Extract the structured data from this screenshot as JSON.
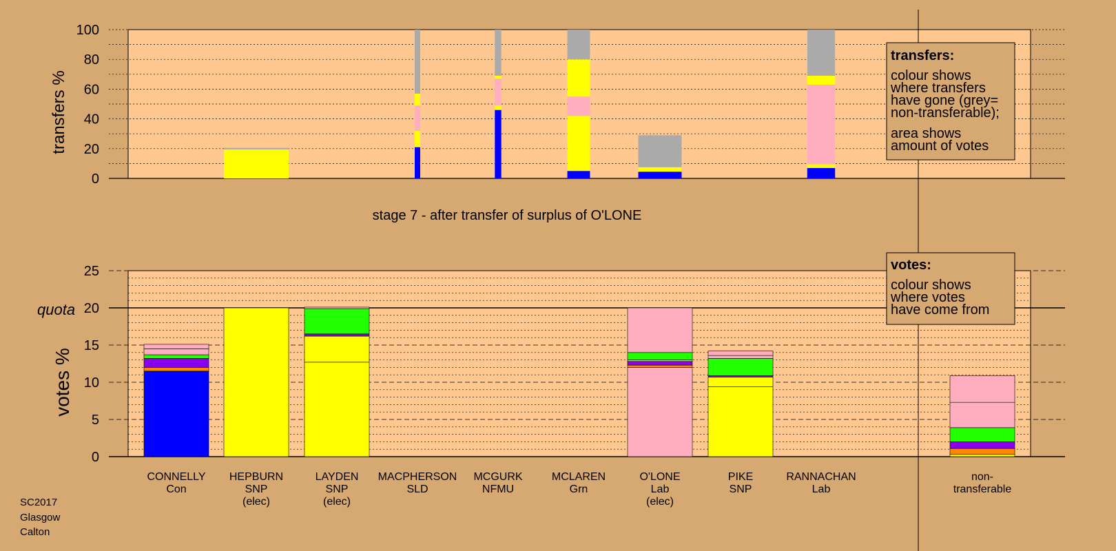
{
  "footer": {
    "lines": [
      "SC2017",
      "Glasgow",
      "Calton"
    ]
  },
  "stage_title": "stage 7 - after transfer of surplus of O'LONE",
  "colors": {
    "page_bg": "#d6a872",
    "plot_bg": "#ffc890",
    "Con": "#0000ff",
    "SNP": "#ffff00",
    "Grn": "#22ff00",
    "Lab": "#ffaec0",
    "LD": "#8800ee",
    "Oth": "#ff8800",
    "nontransferable": "#aaaaaa"
  },
  "legends": {
    "transfers": {
      "title": "transfers:",
      "lines1": [
        "colour shows",
        "where transfers",
        "have gone (grey=",
        "non-transferable);"
      ],
      "lines2": [
        "area shows",
        "amount of votes"
      ]
    },
    "votes": {
      "title": "votes:",
      "lines": [
        "colour shows",
        "where votes",
        "have come from"
      ]
    }
  },
  "chart_data": [
    {
      "type": "bar",
      "name": "transfers",
      "ylabel": "transfers %",
      "ylim": [
        0,
        100
      ],
      "yticks": [
        0,
        20,
        40,
        60,
        80,
        100
      ],
      "categories": [
        "CONNELLY",
        "HEPBURN",
        "LAYDEN",
        "MACPHERSON",
        "MCGURK",
        "MCLAREN",
        "O'LONE",
        "PIKE",
        "RANNACHAN"
      ],
      "columns": [
        {
          "candidate": "HEPBURN",
          "width_share": 1.0,
          "segments": [
            {
              "party": "SNP",
              "from": 0,
              "to": 14
            },
            {
              "party": "SNP",
              "from": 14,
              "to": 19.5
            },
            {
              "party": "nontransferable",
              "from": 19.5,
              "to": 20.5
            }
          ]
        },
        {
          "candidate": "MACPHERSON",
          "width_share": 0.07,
          "segments": [
            {
              "party": "Con",
              "from": 0,
              "to": 21
            },
            {
              "party": "SNP",
              "from": 21,
              "to": 32
            },
            {
              "party": "Lab",
              "from": 32,
              "to": 49
            },
            {
              "party": "SNP",
              "from": 49,
              "to": 57
            },
            {
              "party": "nontransferable",
              "from": 57,
              "to": 100
            }
          ]
        },
        {
          "candidate": "MCGURK",
          "width_share": 0.1,
          "segments": [
            {
              "party": "Con",
              "from": 0,
              "to": 46
            },
            {
              "party": "SNP",
              "from": 46,
              "to": 49
            },
            {
              "party": "Lab",
              "from": 49,
              "to": 67
            },
            {
              "party": "SNP",
              "from": 67,
              "to": 69
            },
            {
              "party": "nontransferable",
              "from": 69,
              "to": 100
            }
          ]
        },
        {
          "candidate": "MCLAREN",
          "width_share": 0.35,
          "segments": [
            {
              "party": "Con",
              "from": 0,
              "to": 5
            },
            {
              "party": "SNP",
              "from": 5,
              "to": 42
            },
            {
              "party": "Lab",
              "from": 42,
              "to": 55
            },
            {
              "party": "SNP",
              "from": 55,
              "to": 80
            },
            {
              "party": "nontransferable",
              "from": 80,
              "to": 100
            }
          ]
        },
        {
          "candidate": "O'LONE",
          "width_share": 0.67,
          "segments": [
            {
              "party": "Con",
              "from": 0,
              "to": 4.5
            },
            {
              "party": "SNP",
              "from": 4.5,
              "to": 7.5
            },
            {
              "party": "nontransferable",
              "from": 7.5,
              "to": 29
            }
          ]
        },
        {
          "candidate": "RANNACHAN",
          "width_share": 0.43,
          "segments": [
            {
              "party": "Con",
              "from": 0,
              "to": 7
            },
            {
              "party": "SNP",
              "from": 7,
              "to": 9.5
            },
            {
              "party": "Lab",
              "from": 9.5,
              "to": 63
            },
            {
              "party": "SNP",
              "from": 63,
              "to": 69
            },
            {
              "party": "nontransferable",
              "from": 69,
              "to": 100
            }
          ]
        }
      ]
    },
    {
      "type": "bar",
      "name": "votes",
      "ylabel": "votes %",
      "quota_label": "quota",
      "quota": 20,
      "ylim": [
        0,
        25
      ],
      "yticks": [
        0,
        5,
        10,
        15,
        20,
        25
      ],
      "candidates": [
        {
          "name": "CONNELLY",
          "lines": [
            "CONNELLY",
            "Con"
          ],
          "segments": [
            {
              "party": "Con",
              "value": 11.5
            },
            {
              "party": "Oth",
              "value": 0.5
            },
            {
              "party": "LD",
              "value": 1.2
            },
            {
              "party": "Grn",
              "value": 0.5
            },
            {
              "party": "Lab",
              "value": 0.8
            },
            {
              "party": "Lab",
              "value": 0.6
            }
          ]
        },
        {
          "name": "HEPBURN",
          "lines": [
            "HEPBURN",
            "SNP",
            "(elec)"
          ],
          "segments": [
            {
              "party": "SNP",
              "value": 20
            }
          ]
        },
        {
          "name": "LAYDEN",
          "lines": [
            "LAYDEN",
            "SNP",
            "(elec)"
          ],
          "segments": [
            {
              "party": "SNP",
              "value": 12.7
            },
            {
              "party": "SNP",
              "value": 3.5
            },
            {
              "party": "LD",
              "value": 0.3
            },
            {
              "party": "Grn",
              "value": 3.4
            },
            {
              "party": "Lab",
              "value": 0.2
            }
          ]
        },
        {
          "name": "MACPHERSON",
          "lines": [
            "MACPHERSON",
            "SLD"
          ],
          "segments": []
        },
        {
          "name": "MCGURK",
          "lines": [
            "MCGURK",
            "NFMU"
          ],
          "segments": []
        },
        {
          "name": "MCLAREN",
          "lines": [
            "MCLAREN",
            "Grn"
          ],
          "segments": []
        },
        {
          "name": "O'LONE",
          "lines": [
            "O'LONE",
            "Lab",
            "(elec)"
          ],
          "segments": [
            {
              "party": "Lab",
              "value": 12.0
            },
            {
              "party": "Oth",
              "value": 0.3
            },
            {
              "party": "LD",
              "value": 0.5
            },
            {
              "party": "Lab",
              "value": 0.2
            },
            {
              "party": "Grn",
              "value": 1.0
            },
            {
              "party": "Lab",
              "value": 6.0
            }
          ]
        },
        {
          "name": "PIKE",
          "lines": [
            "PIKE",
            "SNP"
          ],
          "segments": [
            {
              "party": "SNP",
              "value": 9.4
            },
            {
              "party": "SNP",
              "value": 1.3
            },
            {
              "party": "LD",
              "value": 0.2
            },
            {
              "party": "Grn",
              "value": 2.3
            },
            {
              "party": "Lab",
              "value": 0.4
            },
            {
              "party": "Lab",
              "value": 0.6
            }
          ]
        },
        {
          "name": "RANNACHAN",
          "lines": [
            "RANNACHAN",
            "Lab"
          ],
          "segments": []
        },
        {
          "name": "non-transferable",
          "lines": [
            "non-",
            "transferable"
          ],
          "segments": [
            {
              "party": "SNP",
              "value": 0.3
            },
            {
              "party": "Oth",
              "value": 0.8
            },
            {
              "party": "LD",
              "value": 0.9
            },
            {
              "party": "Grn",
              "value": 1.9
            },
            {
              "party": "Lab",
              "value": 3.4
            },
            {
              "party": "Lab",
              "value": 3.6
            }
          ]
        }
      ]
    }
  ]
}
